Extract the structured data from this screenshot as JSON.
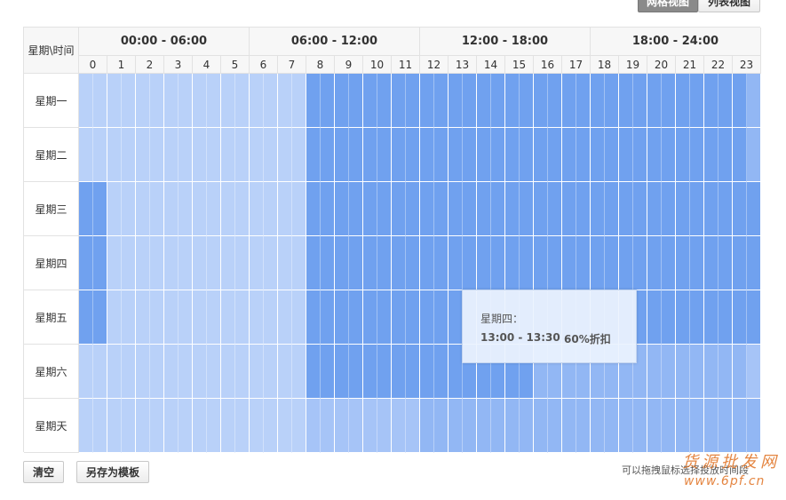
{
  "toolbar": {
    "grid_view": "网格视图",
    "list_view": "列表视图"
  },
  "table": {
    "corner": "星期\\时间",
    "periods": [
      "00:00 - 06:00",
      "06:00 - 12:00",
      "12:00 - 18:00",
      "18:00 - 24:00"
    ],
    "hours": [
      0,
      1,
      2,
      3,
      4,
      5,
      6,
      7,
      8,
      9,
      10,
      11,
      12,
      13,
      14,
      15,
      16,
      17,
      18,
      19,
      20,
      21,
      22,
      23
    ],
    "days": [
      "星期一",
      "星期二",
      "星期三",
      "星期四",
      "星期五",
      "星期六",
      "星期天"
    ]
  },
  "tooltip": {
    "day": "星期四：",
    "time": "13:00 - 13:30",
    "discount": "60%折扣"
  },
  "footer": {
    "clear": "清空",
    "save_template": "另存为模板",
    "hint": "可以拖拽鼠标选择投放时间段"
  },
  "watermark": {
    "name": "货源批发网",
    "url": "www.6pf.cn"
  }
}
